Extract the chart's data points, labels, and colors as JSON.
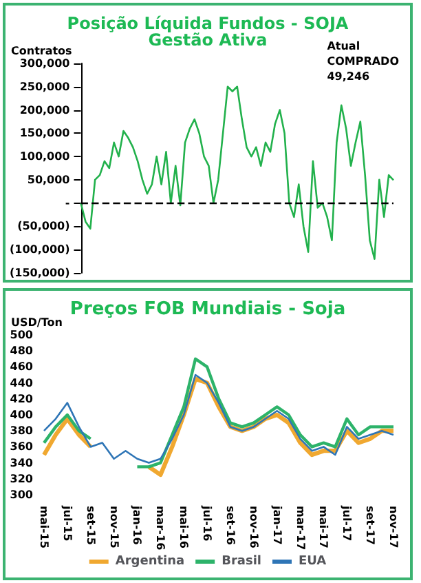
{
  "chart_data": [
    {
      "type": "line",
      "title": "Posição Líquida Fundos - SOJA",
      "subtitle": "Gestão Ativa",
      "ylabel": "Contratos",
      "annotations": [
        "Atual\nCOMPRADO\n49,246"
      ],
      "categories": [
        null,
        null,
        null,
        null,
        null,
        null,
        null,
        null,
        null,
        null,
        null,
        null,
        null,
        null,
        null,
        null,
        null,
        null,
        null,
        null,
        null,
        null,
        null,
        null,
        null,
        null,
        null,
        null,
        null,
        null,
        null,
        null,
        null,
        null,
        null,
        null,
        null,
        null,
        null,
        null,
        null,
        null,
        null,
        null,
        null,
        null,
        null,
        null,
        null,
        null,
        null,
        null,
        null,
        null,
        null,
        null,
        null,
        null,
        null,
        null,
        null,
        null,
        null,
        null,
        null,
        null,
        null
      ],
      "series": [
        {
          "color": "#22b14c",
          "values": [
            0,
            -40000,
            -55000,
            50000,
            60000,
            90000,
            75000,
            130000,
            100000,
            155000,
            140000,
            120000,
            90000,
            50000,
            20000,
            40000,
            100000,
            40000,
            110000,
            0,
            80000,
            -5000,
            130000,
            160000,
            180000,
            150000,
            100000,
            80000,
            0,
            50000,
            150000,
            250000,
            240000,
            250000,
            180000,
            120000,
            100000,
            120000,
            80000,
            130000,
            110000,
            170000,
            200000,
            150000,
            0,
            -30000,
            40000,
            -50000,
            -105000,
            90000,
            -10000,
            0,
            -30000,
            -80000,
            130000,
            210000,
            160000,
            80000,
            130000,
            175000,
            60000,
            -80000,
            -120000,
            50000,
            -30000,
            60000,
            49246
          ]
        }
      ],
      "ylim": [
        -150000,
        300000
      ],
      "yticks": [
        {
          "value": -150000,
          "label": "(150,000)"
        },
        {
          "value": -100000,
          "label": "(100,000)"
        },
        {
          "value": -50000,
          "label": "(50,000)"
        },
        {
          "value": 0,
          "label": "-"
        },
        {
          "value": 50000,
          "label": "50,000"
        },
        {
          "value": 100000,
          "label": "100,000"
        },
        {
          "value": 150000,
          "label": "150,000"
        },
        {
          "value": 200000,
          "label": "200,000"
        },
        {
          "value": 250000,
          "label": "250,000"
        },
        {
          "value": 300000,
          "label": "300,000"
        }
      ],
      "ref_lines": [
        {
          "axis": "y",
          "value": 0,
          "color": "#000000",
          "line_style": "dashed"
        }
      ],
      "grid": false,
      "legend": false,
      "marker": "none"
    },
    {
      "type": "line",
      "title": "Preços FOB Mundiais - Soja",
      "ylabel": "USD/Ton",
      "categories": [
        "mai-15",
        null,
        "jul-15",
        null,
        "set-15",
        null,
        "nov-15",
        null,
        "jan-16",
        null,
        "mar-16",
        null,
        "mai-16",
        null,
        "jul-16",
        null,
        "set-16",
        null,
        "nov-16",
        null,
        "jan-17",
        null,
        "mar-17",
        null,
        "mai-17",
        null,
        "jul-17",
        null,
        "set-17",
        null,
        "nov-17"
      ],
      "series": [
        {
          "name": "Argentina",
          "color": "#f0a830",
          "values": [
            350,
            375,
            395,
            375,
            360,
            null,
            null,
            null,
            null,
            335,
            325,
            360,
            400,
            445,
            440,
            410,
            385,
            380,
            385,
            395,
            400,
            390,
            365,
            350,
            355,
            355,
            380,
            365,
            370,
            380,
            380
          ]
        },
        {
          "name": "Brasil",
          "color": "#2db36a",
          "values": [
            365,
            385,
            400,
            380,
            370,
            null,
            null,
            null,
            335,
            335,
            340,
            375,
            410,
            470,
            460,
            420,
            390,
            385,
            390,
            400,
            410,
            400,
            375,
            360,
            365,
            360,
            395,
            375,
            385,
            385,
            385
          ]
        },
        {
          "name": "EUA",
          "color": "#2e75b6",
          "values": [
            380,
            395,
            415,
            385,
            360,
            365,
            345,
            355,
            345,
            340,
            345,
            370,
            400,
            450,
            440,
            415,
            385,
            380,
            385,
            395,
            405,
            395,
            370,
            355,
            360,
            350,
            385,
            370,
            375,
            380,
            375
          ]
        }
      ],
      "ylim": [
        300,
        500
      ],
      "yticks": [
        300,
        320,
        340,
        360,
        380,
        400,
        420,
        440,
        460,
        480,
        500
      ],
      "grid": false,
      "legend": "bottom",
      "marker": "none"
    }
  ]
}
